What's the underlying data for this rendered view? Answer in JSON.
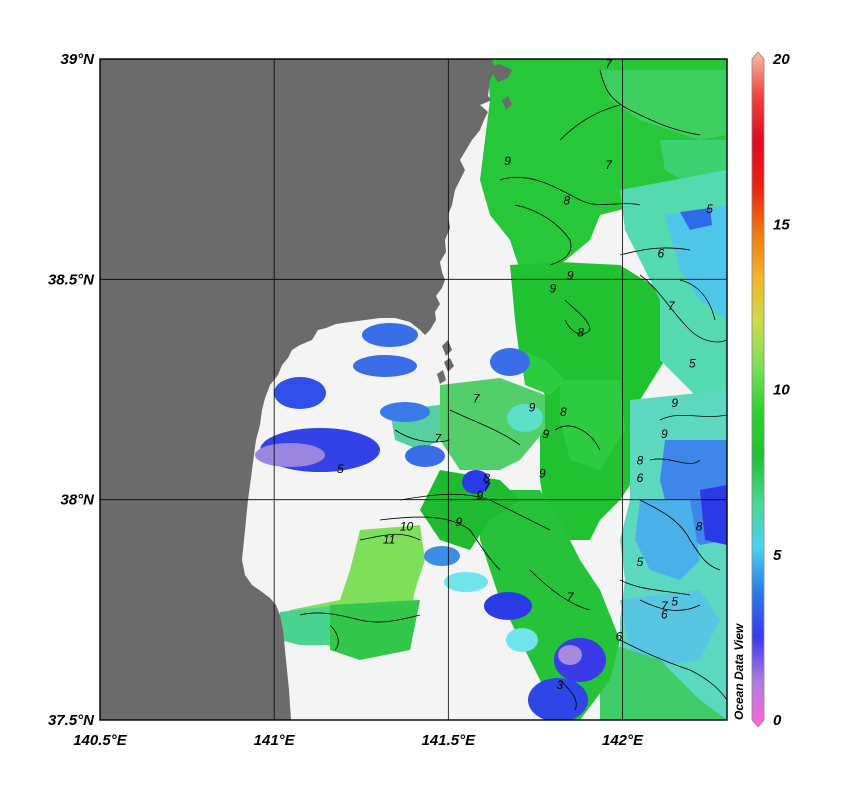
{
  "map": {
    "lat_range": [
      37.5,
      39.0
    ],
    "lon_range": [
      140.5,
      142.3
    ],
    "lat_ticks": [
      {
        "value": 39.0,
        "label": "39°N"
      },
      {
        "value": 38.5,
        "label": "38.5°N"
      },
      {
        "value": 38.0,
        "label": "38°N"
      },
      {
        "value": 37.5,
        "label": "37.5°N"
      }
    ],
    "lon_ticks": [
      {
        "value": 140.5,
        "label": "140.5°E"
      },
      {
        "value": 141.0,
        "label": "141°E"
      },
      {
        "value": 141.5,
        "label": "141.5°E"
      },
      {
        "value": 142.0,
        "label": "142°E"
      }
    ],
    "grid": true,
    "land_color": "#6b6b6b",
    "sea_no_data_color": "#f4f4f4",
    "contour_labels": [
      {
        "text": "9",
        "lon": 141.67,
        "lat": 38.76
      },
      {
        "text": "8",
        "lon": 141.84,
        "lat": 38.67
      },
      {
        "text": "7",
        "lon": 141.96,
        "lat": 38.98
      },
      {
        "text": "7",
        "lon": 141.96,
        "lat": 38.75
      },
      {
        "text": "6",
        "lon": 142.11,
        "lat": 38.55
      },
      {
        "text": "5",
        "lon": 142.25,
        "lat": 38.65
      },
      {
        "text": "9",
        "lon": 141.85,
        "lat": 38.5
      },
      {
        "text": "8",
        "lon": 141.88,
        "lat": 38.37
      },
      {
        "text": "9",
        "lon": 141.8,
        "lat": 38.47
      },
      {
        "text": "7",
        "lon": 141.58,
        "lat": 38.22
      },
      {
        "text": "9",
        "lon": 141.74,
        "lat": 38.2
      },
      {
        "text": "8",
        "lon": 141.83,
        "lat": 38.19
      },
      {
        "text": "9",
        "lon": 141.78,
        "lat": 38.14
      },
      {
        "text": "9",
        "lon": 141.77,
        "lat": 38.05
      },
      {
        "text": "7",
        "lon": 141.47,
        "lat": 38.13
      },
      {
        "text": "9",
        "lon": 141.59,
        "lat": 38.0
      },
      {
        "text": "10",
        "lon": 141.38,
        "lat": 37.93
      },
      {
        "text": "11",
        "lon": 141.33,
        "lat": 37.9
      },
      {
        "text": "9",
        "lon": 141.53,
        "lat": 37.94
      },
      {
        "text": "8",
        "lon": 141.61,
        "lat": 38.04
      },
      {
        "text": "7",
        "lon": 141.61,
        "lat": 38.02
      },
      {
        "text": "5",
        "lon": 141.19,
        "lat": 38.06
      },
      {
        "text": "7",
        "lon": 141.85,
        "lat": 37.77
      },
      {
        "text": "5",
        "lon": 142.15,
        "lat": 37.76
      },
      {
        "text": "6",
        "lon": 142.12,
        "lat": 37.73
      },
      {
        "text": "6",
        "lon": 141.99,
        "lat": 37.68
      },
      {
        "text": "3",
        "lon": 141.82,
        "lat": 37.57
      },
      {
        "text": "8",
        "lon": 142.05,
        "lat": 38.08
      },
      {
        "text": "6",
        "lon": 142.05,
        "lat": 38.04
      },
      {
        "text": "9",
        "lon": 142.15,
        "lat": 38.21
      },
      {
        "text": "7",
        "lon": 142.14,
        "lat": 38.43
      },
      {
        "text": "5",
        "lon": 142.2,
        "lat": 38.3
      },
      {
        "text": "9",
        "lon": 142.12,
        "lat": 38.14
      },
      {
        "text": "8",
        "lon": 142.22,
        "lat": 37.93
      },
      {
        "text": "5",
        "lon": 142.05,
        "lat": 37.85
      },
      {
        "text": "7",
        "lon": 142.12,
        "lat": 37.75
      }
    ]
  },
  "colorbar": {
    "min": 0,
    "max": 20,
    "tick_labels": [
      "20",
      "15",
      "10",
      "5",
      "0"
    ],
    "stops": [
      "#ff66d6",
      "#b27ae0",
      "#3a3af0",
      "#2a7ae8",
      "#4ad2ee",
      "#4bd690",
      "#20c232",
      "#2cd22c",
      "#7ade58",
      "#ccdc4a",
      "#f8b22a",
      "#f07810",
      "#ee2010",
      "#e00a20",
      "#f0403a",
      "#f8c0a8"
    ]
  },
  "watermark": "Ocean Data View"
}
